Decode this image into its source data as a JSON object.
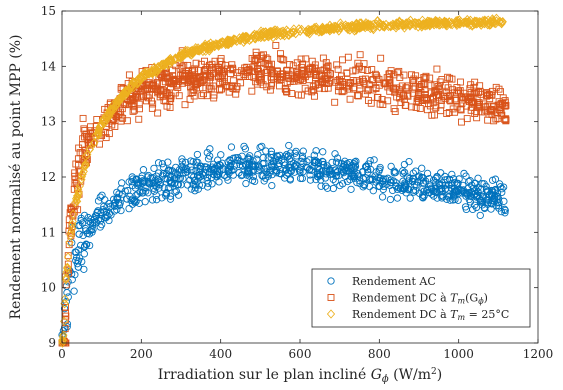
{
  "chart_data": {
    "type": "scatter",
    "title": "",
    "xlabel_main": "Irradiation sur le plan incliné ",
    "xlabel_var": "G",
    "xlabel_sub": "ϕ",
    "xlabel_units": " (W/m",
    "xlabel_sup": "2",
    "xlabel_close": ")",
    "ylabel": "Rendement normalisé au point MPP (%)",
    "xlim": [
      0,
      1200
    ],
    "ylim": [
      9,
      15
    ],
    "x_ticks": [
      "0",
      "200",
      "400",
      "600",
      "800",
      "1000",
      "1200"
    ],
    "y_ticks": [
      "9",
      "10",
      "11",
      "12",
      "13",
      "14",
      "15"
    ],
    "grid": false,
    "legend_position": "bottom-right",
    "series": [
      {
        "key": "ac",
        "name": "Rendement AC",
        "marker": "circle",
        "color": "#0072BD",
        "curve": [
          [
            5,
            9.0
          ],
          [
            20,
            10.3
          ],
          [
            50,
            10.9
          ],
          [
            100,
            11.35
          ],
          [
            200,
            11.8
          ],
          [
            300,
            12.0
          ],
          [
            400,
            12.15
          ],
          [
            500,
            12.2
          ],
          [
            600,
            12.2
          ],
          [
            700,
            12.1
          ],
          [
            800,
            12.0
          ],
          [
            900,
            11.9
          ],
          [
            1000,
            11.8
          ],
          [
            1100,
            11.6
          ],
          [
            1120,
            11.55
          ]
        ],
        "spread": 0.15,
        "xmax": 1120
      },
      {
        "key": "dc_tm",
        "name_prefix": "Rendement DC à ",
        "name_var": "T",
        "name_sub": "m",
        "name_suffix": "(G",
        "name_sub2": "ϕ",
        "name_close": ")",
        "marker": "square",
        "color": "#D95319",
        "curve": [
          [
            5,
            9.0
          ],
          [
            20,
            11.0
          ],
          [
            50,
            12.4
          ],
          [
            100,
            13.0
          ],
          [
            200,
            13.55
          ],
          [
            300,
            13.75
          ],
          [
            400,
            13.85
          ],
          [
            500,
            13.88
          ],
          [
            600,
            13.85
          ],
          [
            700,
            13.75
          ],
          [
            800,
            13.65
          ],
          [
            900,
            13.55
          ],
          [
            1000,
            13.45
          ],
          [
            1100,
            13.3
          ],
          [
            1120,
            13.2
          ]
        ],
        "spread": 0.18,
        "xmax": 1120
      },
      {
        "key": "dc_25",
        "name_prefix": "Rendement DC à ",
        "name_var": "T",
        "name_sub": "m",
        "name_suffix": " = 25°C",
        "marker": "diamond",
        "color": "#EDB120",
        "curve": [
          [
            2,
            9.0
          ],
          [
            10,
            10.2
          ],
          [
            30,
            11.4
          ],
          [
            60,
            12.3
          ],
          [
            100,
            12.95
          ],
          [
            150,
            13.45
          ],
          [
            200,
            13.8
          ],
          [
            300,
            14.2
          ],
          [
            400,
            14.42
          ],
          [
            500,
            14.56
          ],
          [
            600,
            14.64
          ],
          [
            700,
            14.7
          ],
          [
            800,
            14.74
          ],
          [
            900,
            14.77
          ],
          [
            1000,
            14.79
          ],
          [
            1100,
            14.8
          ],
          [
            1120,
            14.8
          ]
        ],
        "spread": 0.03,
        "xmax": 1120
      }
    ]
  }
}
